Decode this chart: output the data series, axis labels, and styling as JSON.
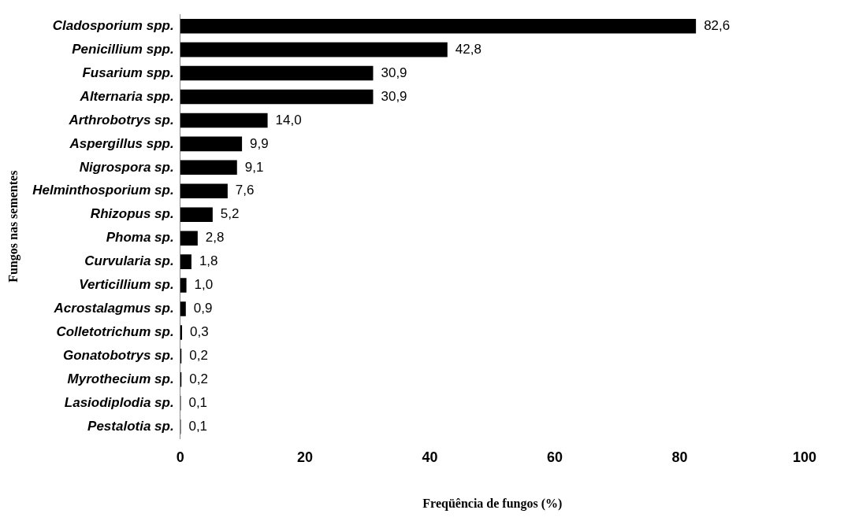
{
  "chart_data": {
    "type": "bar",
    "orientation": "horizontal",
    "xlabel": "Freqüência de fungos (%)",
    "ylabel": "Fungos nas sementes",
    "categories": [
      "Cladosporium spp.",
      "Penicillium spp.",
      "Fusarium spp.",
      "Alternaria spp.",
      "Arthrobotrys sp.",
      "Aspergillus spp.",
      "Nigrospora sp.",
      "Helminthosporium sp.",
      "Rhizopus sp.",
      "Phoma sp.",
      "Curvularia sp.",
      "Verticillium sp.",
      "Acrostalagmus sp.",
      "Colletotrichum sp.",
      "Gonatobotrys sp.",
      "Myrothecium sp.",
      "Lasiodiplodia sp.",
      "Pestalotia sp."
    ],
    "values": [
      82.6,
      42.8,
      30.9,
      30.9,
      14.0,
      9.9,
      9.1,
      7.6,
      5.2,
      2.8,
      1.8,
      1.0,
      0.9,
      0.3,
      0.2,
      0.2,
      0.1,
      0.1
    ],
    "value_labels": [
      "82,6",
      "42,8",
      "30,9",
      "30,9",
      "14,0",
      "9,9",
      "9,1",
      "7,6",
      "5,2",
      "2,8",
      "1,8",
      "1,0",
      "0,9",
      "0,3",
      "0,2",
      "0,2",
      "0,1",
      "0,1"
    ],
    "color": "#000000",
    "xlim": [
      0,
      100
    ],
    "xticks": [
      0,
      20,
      40,
      60,
      80,
      100
    ],
    "grid": false,
    "legend": false
  }
}
